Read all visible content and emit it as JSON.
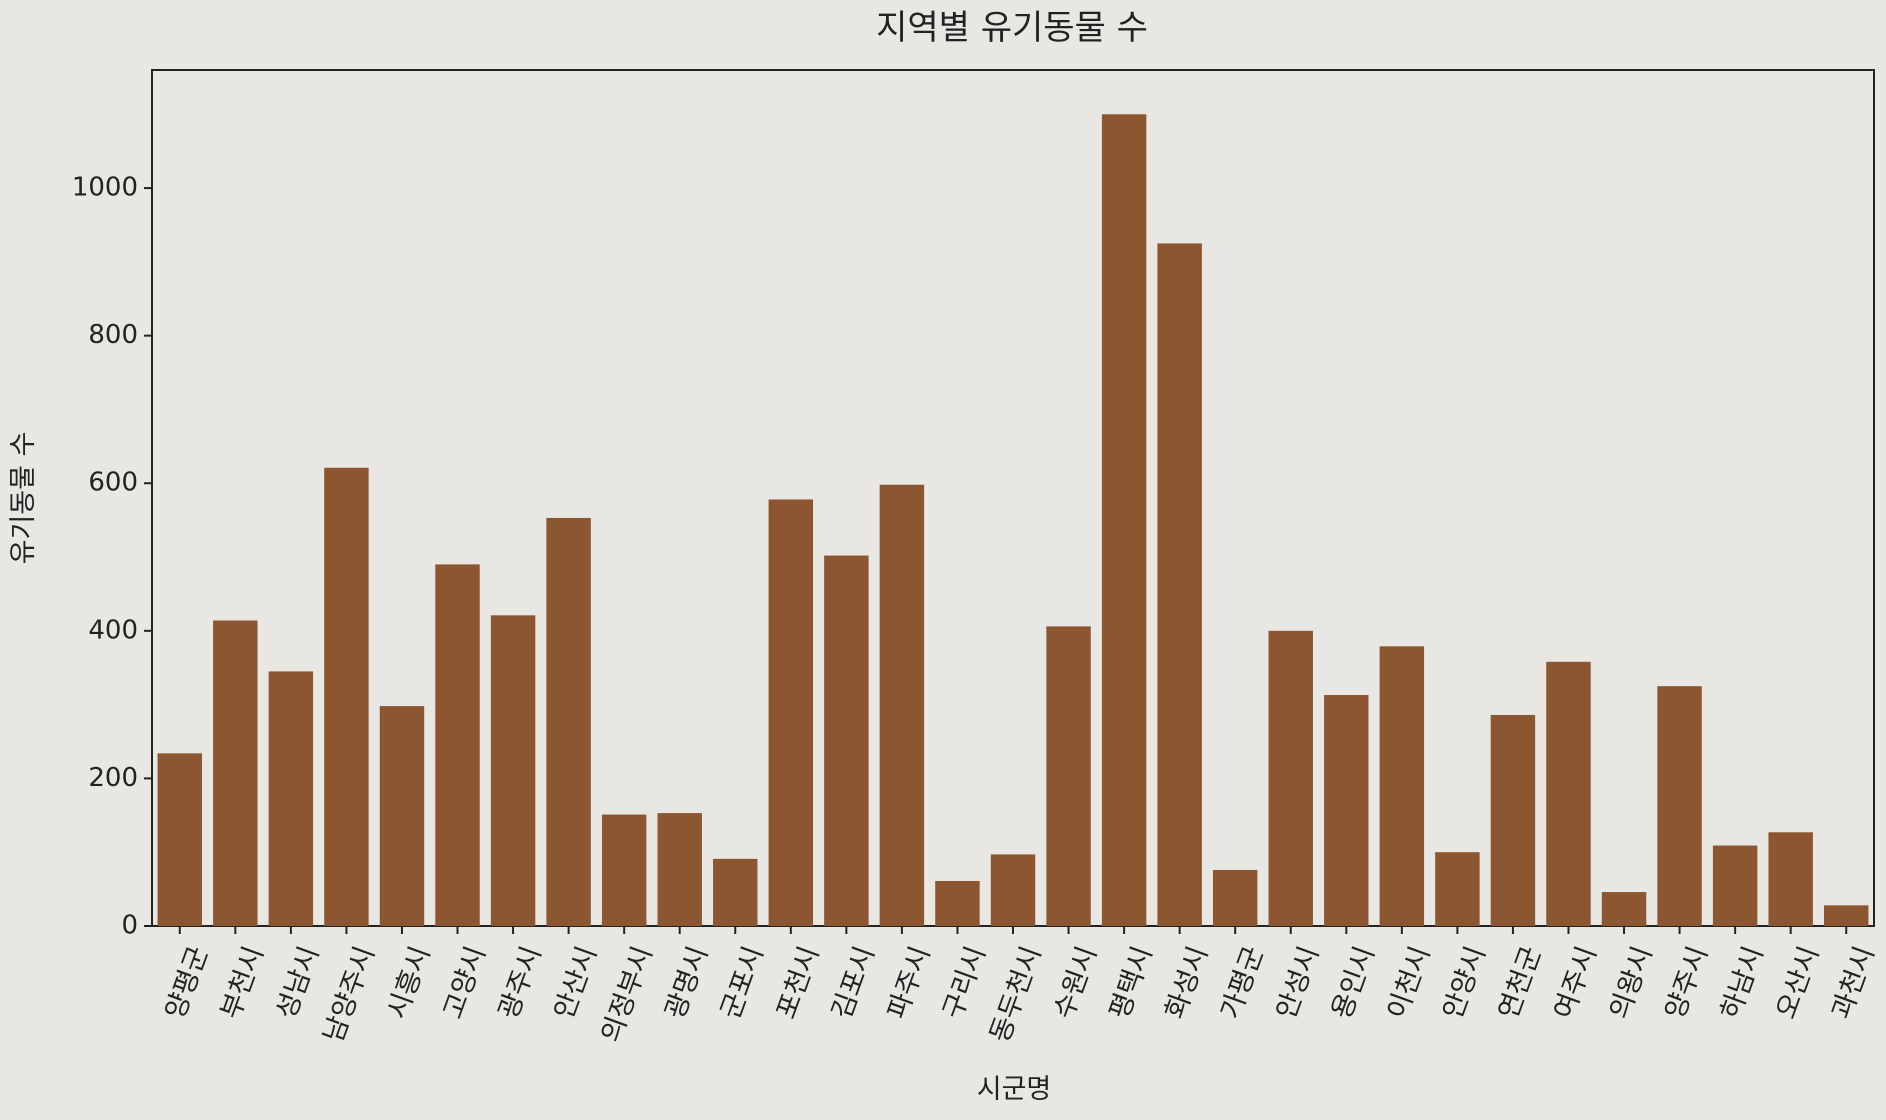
{
  "chart_data": {
    "type": "bar",
    "title": "지역별 유기동물 수",
    "xlabel": "시군명",
    "ylabel": "유기동물 수",
    "ylim": [
      0,
      1160
    ],
    "yticks": [
      0,
      200,
      400,
      600,
      800,
      1000
    ],
    "bar_color": "#8b5630",
    "background": "#e9e7e3",
    "grid": false,
    "categories": [
      "양평군",
      "부천시",
      "성남시",
      "남양주시",
      "시흥시",
      "고양시",
      "광주시",
      "안산시",
      "의정부시",
      "광명시",
      "군포시",
      "포천시",
      "김포시",
      "파주시",
      "구리시",
      "동두천시",
      "수원시",
      "평택시",
      "화성시",
      "가평군",
      "안성시",
      "용인시",
      "이천시",
      "안양시",
      "연천군",
      "여주시",
      "의왕시",
      "양주시",
      "하남시",
      "오산시",
      "과천시"
    ],
    "values": [
      234,
      414,
      345,
      621,
      298,
      490,
      421,
      553,
      151,
      153,
      91,
      578,
      502,
      598,
      61,
      97,
      406,
      1100,
      925,
      76,
      400,
      313,
      379,
      100,
      286,
      358,
      46,
      325,
      109,
      127,
      28
    ]
  }
}
